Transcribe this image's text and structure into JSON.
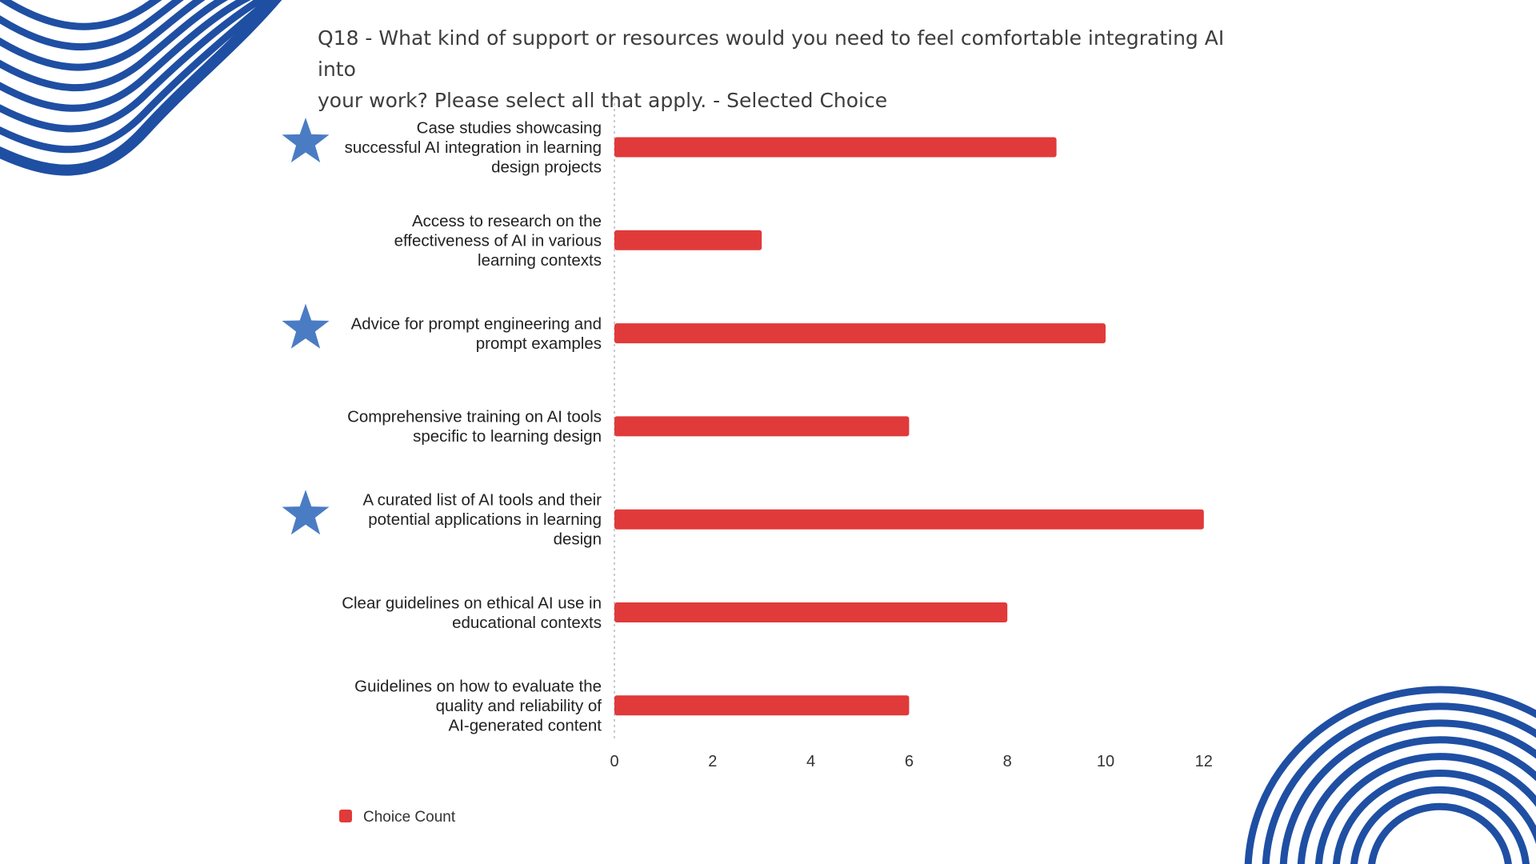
{
  "title_lines": [
    "Q18 - What kind of support or resources would you need to feel comfortable integrating AI into",
    "your work? Please select all that apply. - Selected Choice"
  ],
  "colors": {
    "bar": "#e03a3a",
    "star": "#4a7cc4",
    "decoration": "#1f4fa3",
    "gridline": "#cccccc"
  },
  "chart_data": {
    "type": "bar",
    "orientation": "horizontal",
    "title": "Q18 - What kind of support or resources would you need to feel comfortable integrating AI into your work? Please select all that apply. - Selected Choice",
    "categories": [
      "Case studies showcasing successful AI integration in learning design projects",
      "Access to research on the effectiveness of AI in various learning contexts",
      "Advice for prompt engineering and prompt examples",
      "Comprehensive training on AI tools specific to learning design",
      "A curated list of AI tools and their potential applications in learning design",
      "Clear guidelines on ethical AI use in educational contexts",
      "Guidelines on how to evaluate the quality and reliability of AI-generated content"
    ],
    "category_lines": [
      [
        "Case studies showcasing",
        "successful AI integration in learning",
        "design projects"
      ],
      [
        "Access to research on the",
        "effectiveness of AI in various",
        "learning contexts"
      ],
      [
        "Advice for prompt engineering and",
        "prompt examples"
      ],
      [
        "Comprehensive training on AI tools",
        "specific to learning design"
      ],
      [
        "A curated list of AI tools and their",
        "potential applications in learning",
        "design"
      ],
      [
        "Clear guidelines on ethical AI use in",
        "educational contexts"
      ],
      [
        "Guidelines on how to evaluate the",
        "quality and reliability of",
        "AI-generated content"
      ]
    ],
    "series": [
      {
        "name": "Choice Count",
        "values": [
          9,
          3,
          10,
          6,
          12,
          8,
          6
        ]
      }
    ],
    "starred": [
      true,
      false,
      true,
      false,
      true,
      false,
      false
    ],
    "xlim": [
      0,
      12
    ],
    "xticks": [
      0,
      2,
      4,
      6,
      8,
      10,
      12
    ],
    "xlabel": "",
    "ylabel": "",
    "grid": false,
    "legend_position": "bottom-left"
  }
}
